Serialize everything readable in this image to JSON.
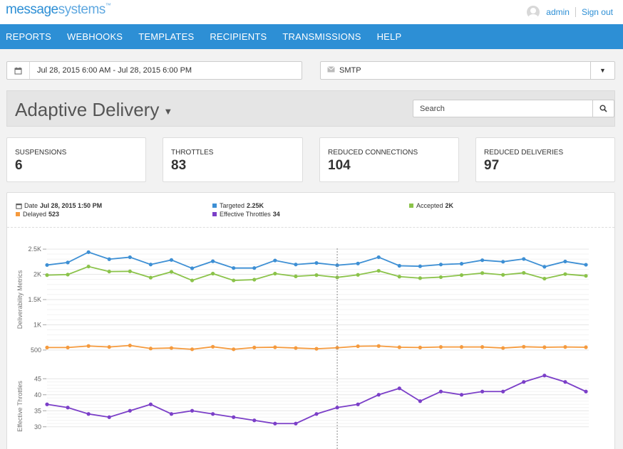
{
  "brand": {
    "part1": "message",
    "part2": "systems",
    "tm": "™"
  },
  "user": {
    "name": "admin",
    "signout": "Sign out"
  },
  "nav": [
    "REPORTS",
    "WEBHOOKS",
    "TEMPLATES",
    "RECIPIENTS",
    "TRANSMISSIONS",
    "HELP"
  ],
  "filters": {
    "date_range": "Jul 28, 2015 6:00 AM - Jul 28, 2015 6:00 PM",
    "protocol": "SMTP"
  },
  "page": {
    "title": "Adaptive Delivery",
    "search_placeholder": "Search"
  },
  "stats": [
    {
      "label": "SUSPENSIONS",
      "value": "6"
    },
    {
      "label": "THROTTLES",
      "value": "83"
    },
    {
      "label": "REDUCED CONNECTIONS",
      "value": "104"
    },
    {
      "label": "REDUCED DELIVERIES",
      "value": "97"
    }
  ],
  "tooltip": {
    "date_label": "Date",
    "date_value": "Jul 28, 2015 1:50 PM",
    "targeted_label": "Targeted",
    "targeted_value": "2.25K",
    "accepted_label": "Accepted",
    "accepted_value": "2K",
    "delayed_label": "Delayed",
    "delayed_value": "523",
    "throttles_label": "Effective Throttles",
    "throttles_value": "34"
  },
  "colors": {
    "accent": "#2d8fd5",
    "targeted": "#3d8fd4",
    "accepted": "#8bc34a",
    "delayed": "#f59a3d",
    "throttles": "#7b3fc8"
  },
  "chart_data": [
    {
      "type": "line",
      "ylabel": "Deliverability Metrics",
      "yticks": [
        "2.5K",
        "2K",
        "1.5K",
        "1K",
        "500"
      ],
      "ytick_values": [
        2500,
        2000,
        1500,
        1000,
        500
      ],
      "ylim": [
        400,
        2600
      ],
      "x": [
        1,
        2,
        3,
        4,
        5,
        6,
        7,
        8,
        9,
        10,
        11,
        12,
        13,
        14,
        15,
        16,
        17,
        18,
        19,
        20,
        21,
        22,
        23,
        24,
        25,
        26,
        27
      ],
      "series": [
        {
          "name": "Targeted",
          "color": "#3d8fd4",
          "values": [
            2185,
            2235,
            2440,
            2300,
            2340,
            2195,
            2285,
            2120,
            2260,
            2125,
            2125,
            2275,
            2195,
            2225,
            2180,
            2215,
            2340,
            2170,
            2160,
            2195,
            2210,
            2280,
            2250,
            2305,
            2150,
            2255,
            2190
          ]
        },
        {
          "name": "Accepted",
          "color": "#8bc34a",
          "values": [
            1985,
            1995,
            2155,
            2055,
            2060,
            1935,
            2050,
            1880,
            2015,
            1880,
            1895,
            2015,
            1960,
            1985,
            1940,
            1990,
            2070,
            1955,
            1925,
            1945,
            1985,
            2025,
            1990,
            2030,
            1915,
            2005,
            1970
          ]
        },
        {
          "name": "Delayed",
          "color": "#f59a3d",
          "values": [
            550,
            550,
            580,
            560,
            590,
            530,
            540,
            515,
            565,
            515,
            550,
            555,
            540,
            525,
            545,
            575,
            580,
            555,
            550,
            560,
            560,
            560,
            540,
            565,
            555,
            560,
            555
          ]
        }
      ]
    },
    {
      "type": "line",
      "ylabel": "Effective Throttles",
      "yticks": [
        "45",
        "40",
        "35",
        "30"
      ],
      "ytick_values": [
        45,
        40,
        35,
        30
      ],
      "ylim": [
        27.5,
        47.5
      ],
      "x": [
        1,
        2,
        3,
        4,
        5,
        6,
        7,
        8,
        9,
        10,
        11,
        12,
        13,
        14,
        15,
        16,
        17,
        18,
        19,
        20,
        21,
        22,
        23,
        24,
        25,
        26,
        27
      ],
      "series": [
        {
          "name": "Effective Throttles",
          "color": "#7b3fc8",
          "values": [
            37,
            36,
            34,
            33,
            35,
            37,
            34,
            35,
            34,
            33,
            32,
            31,
            31,
            34,
            36,
            37,
            40,
            42,
            38,
            41,
            40,
            41,
            41,
            44,
            46,
            44,
            41
          ]
        }
      ]
    }
  ]
}
